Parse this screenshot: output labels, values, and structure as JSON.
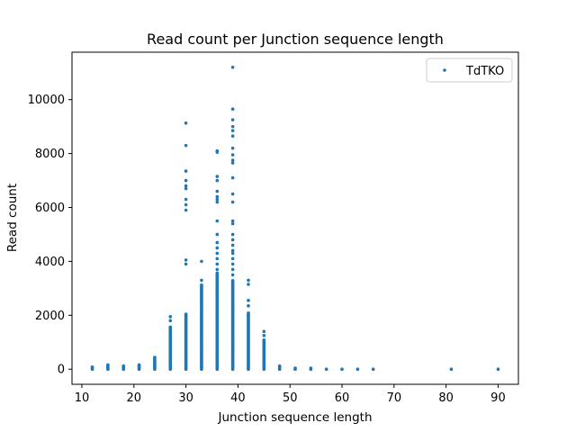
{
  "chart_data": {
    "type": "scatter",
    "title": "Read count per Junction sequence length",
    "xlabel": "Junction sequence length",
    "ylabel": "Read count",
    "xlim": [
      8.1,
      93.9
    ],
    "ylim": [
      -560,
      11760
    ],
    "xticks": [
      10,
      20,
      30,
      40,
      50,
      60,
      70,
      80,
      90
    ],
    "yticks": [
      0,
      2000,
      4000,
      6000,
      8000,
      10000
    ],
    "grid": false,
    "legend_position": "top-right",
    "marker_color": "#1f77b4",
    "series": [
      {
        "name": "TdTKO",
        "columns": [
          {
            "x": 12,
            "max": 90,
            "outliers": []
          },
          {
            "x": 15,
            "max": 180,
            "outliers": []
          },
          {
            "x": 18,
            "max": 120,
            "outliers": []
          },
          {
            "x": 21,
            "max": 160,
            "outliers": []
          },
          {
            "x": 24,
            "max": 450,
            "outliers": []
          },
          {
            "x": 27,
            "max": 1600,
            "outliers": [
              1950,
              1800
            ]
          },
          {
            "x": 30,
            "max": 2050,
            "outliers": [
              9130,
              8300,
              7350,
              7000,
              6800,
              6700,
              6300,
              6100,
              5900,
              4050,
              3900
            ]
          },
          {
            "x": 33,
            "max": 3150,
            "outliers": [
              4000,
              3300
            ]
          },
          {
            "x": 36,
            "max": 3600,
            "outliers": [
              8100,
              8050,
              7150,
              7000,
              6600,
              6400,
              6300,
              6200,
              5500,
              5000,
              4700,
              4500,
              4300,
              4100,
              3900,
              3700
            ]
          },
          {
            "x": 39,
            "max": 3300,
            "outliers": [
              11200,
              9650,
              9250,
              9000,
              8850,
              8650,
              8200,
              7950,
              7750,
              7650,
              7100,
              6500,
              6200,
              5500,
              5400,
              5000,
              4800,
              4600,
              4400,
              4300,
              4100,
              3900,
              3700,
              3500
            ]
          },
          {
            "x": 42,
            "max": 2100,
            "outliers": [
              3300,
              3150,
              2550,
              2350
            ]
          },
          {
            "x": 45,
            "max": 1100,
            "outliers": [
              1400,
              1250
            ]
          },
          {
            "x": 48,
            "max": 150,
            "outliers": []
          },
          {
            "x": 51,
            "max": 60,
            "outliers": []
          },
          {
            "x": 54,
            "max": 40,
            "outliers": []
          },
          {
            "x": 57,
            "max": 30,
            "outliers": []
          },
          {
            "x": 60,
            "max": 10,
            "outliers": []
          },
          {
            "x": 63,
            "max": 10,
            "outliers": []
          },
          {
            "x": 66,
            "max": 10,
            "outliers": []
          },
          {
            "x": 81,
            "max": 10,
            "outliers": []
          },
          {
            "x": 90,
            "max": 10,
            "outliers": []
          }
        ]
      }
    ]
  }
}
